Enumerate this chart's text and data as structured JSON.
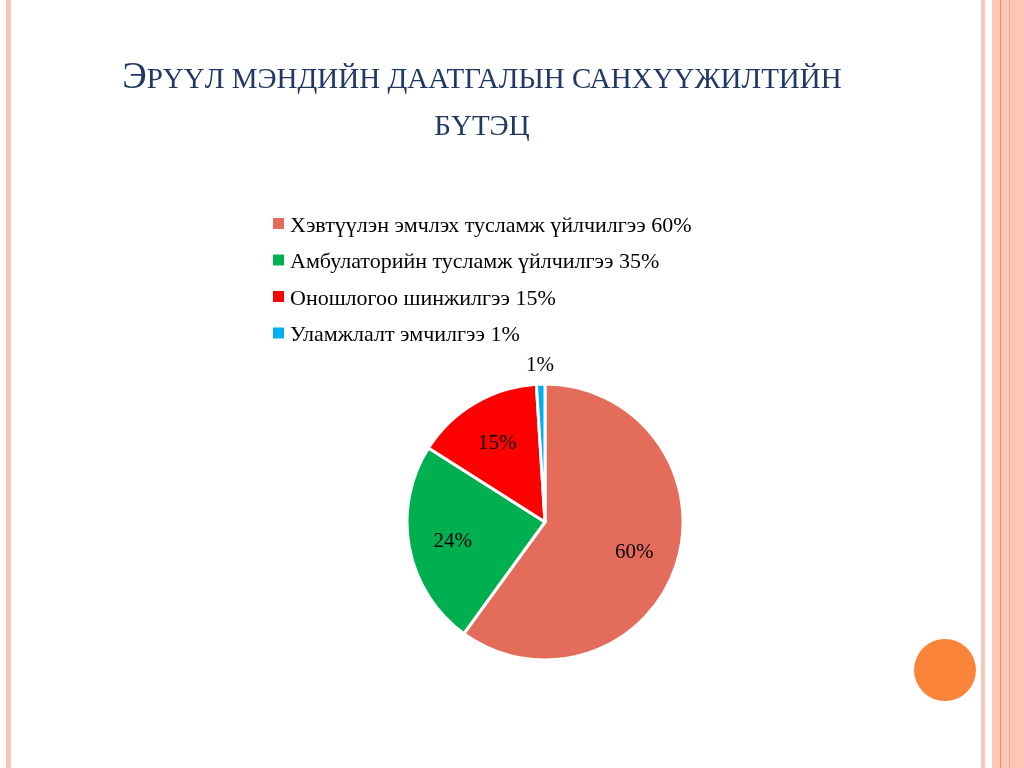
{
  "chart_data": {
    "type": "pie",
    "title": "ЭРҮҮЛ МЭНДИЙН ДААТГАЛЫН САНХҮҮЖИЛТИЙН БҮТЭЦ",
    "categories": [
      "Хэвтүүлэн эмчлэх тусламж үйлчилгээ 60%",
      "Амбулаторийн тусламж үйлчилгээ 35%",
      "Оношлогоо шинжилгээ 15%",
      "Уламжлалт эмчилгээ 1%"
    ],
    "values": [
      60,
      24,
      15,
      1
    ],
    "colors": [
      "#e46c5a",
      "#00b050",
      "#ff0000",
      "#00b0f0"
    ],
    "value_labels": [
      "60%",
      "24%",
      "15%",
      "1%"
    ],
    "legend": "top"
  }
}
